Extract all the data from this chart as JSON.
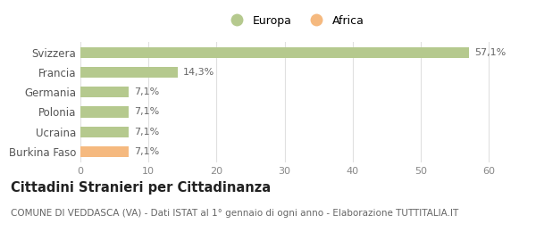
{
  "categories": [
    "Svizzera",
    "Francia",
    "Germania",
    "Polonia",
    "Ucraina",
    "Burkina Faso"
  ],
  "values": [
    57.1,
    14.3,
    7.1,
    7.1,
    7.1,
    7.1
  ],
  "bar_colors": [
    "#b5c98e",
    "#b5c98e",
    "#b5c98e",
    "#b5c98e",
    "#b5c98e",
    "#f5b97f"
  ],
  "labels": [
    "57,1%",
    "14,3%",
    "7,1%",
    "7,1%",
    "7,1%",
    "7,1%"
  ],
  "legend": [
    {
      "label": "Europa",
      "color": "#b5c98e"
    },
    {
      "label": "Africa",
      "color": "#f5b97f"
    }
  ],
  "xlim": [
    0,
    63
  ],
  "xticks": [
    0,
    10,
    20,
    30,
    40,
    50,
    60
  ],
  "title": "Cittadini Stranieri per Cittadinanza",
  "subtitle": "COMUNE DI VEDDASCA (VA) - Dati ISTAT al 1° gennaio di ogni anno - Elaborazione TUTTITALIA.IT",
  "background_color": "#ffffff",
  "grid_color": "#e0e0e0",
  "bar_height": 0.55,
  "label_fontsize": 8.0,
  "title_fontsize": 10.5,
  "subtitle_fontsize": 7.5,
  "ytick_fontsize": 8.5,
  "xtick_fontsize": 8.0
}
